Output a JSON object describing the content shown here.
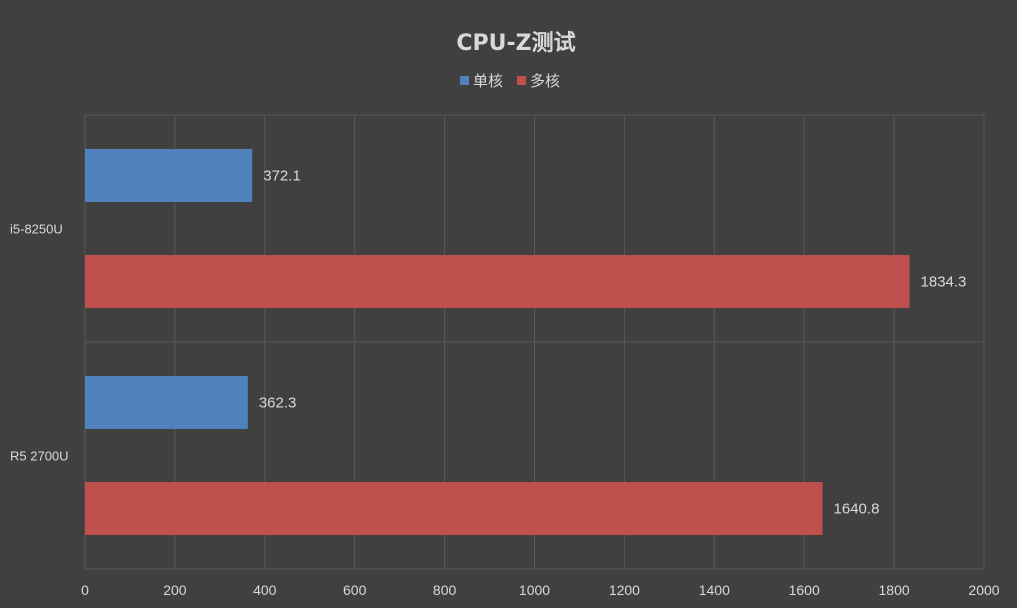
{
  "chart_data": {
    "type": "bar",
    "orientation": "horizontal",
    "title": "CPU-Z测试",
    "categories": [
      "i5-8250U",
      "R5 2700U"
    ],
    "series": [
      {
        "name": "单核",
        "color": "#4f81bd",
        "values": [
          372.1,
          362.3
        ],
        "labels": [
          "372.1",
          "362.3"
        ]
      },
      {
        "name": "多核",
        "color": "#c0504d",
        "values": [
          1834.3,
          1640.8
        ],
        "labels": [
          "1834.3",
          "1640.8"
        ]
      }
    ],
    "xlim": [
      0,
      2000
    ],
    "xticks": [
      0,
      200,
      400,
      600,
      800,
      1000,
      1200,
      1400,
      1600,
      1800,
      2000
    ],
    "xtick_labels": [
      "0",
      "200",
      "400",
      "600",
      "800",
      "1000",
      "1200",
      "1400",
      "1600",
      "1800",
      "2000"
    ],
    "grid": true,
    "legend_position": "top",
    "background": "#404040",
    "gridline_color": "#595959",
    "text_color": "#d9d9d9"
  }
}
